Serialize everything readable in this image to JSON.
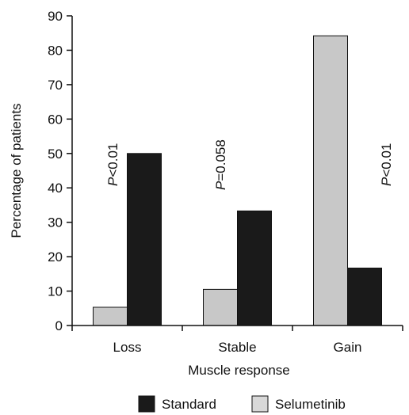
{
  "chart_data": {
    "type": "bar",
    "title": "",
    "xlabel": "Muscle response",
    "ylabel": "Percentage of patients",
    "ylim": [
      0,
      90
    ],
    "yticks": [
      0,
      10,
      20,
      30,
      40,
      50,
      60,
      70,
      80,
      90
    ],
    "categories": [
      "Loss",
      "Stable",
      "Gain"
    ],
    "series": [
      {
        "name": "Selumetinib",
        "values": [
          5.3,
          10.5,
          84.2
        ],
        "color": "#c8c8c8"
      },
      {
        "name": "Standard",
        "values": [
          50.0,
          33.3,
          16.7
        ],
        "color": "#1a1a1a"
      }
    ],
    "annotations": [
      {
        "category": "Loss",
        "italic": "P",
        "rest": "<0.01"
      },
      {
        "category": "Stable",
        "italic": "P",
        "rest": "=0.058"
      },
      {
        "category": "Gain",
        "italic": "P",
        "rest": "<0.01"
      }
    ],
    "legend": {
      "placement": "bottom",
      "items": [
        {
          "label": "Standard",
          "color": "#1a1a1a"
        },
        {
          "label": "Selumetinib",
          "color": "#d8d8d8"
        }
      ]
    },
    "grid": false
  }
}
